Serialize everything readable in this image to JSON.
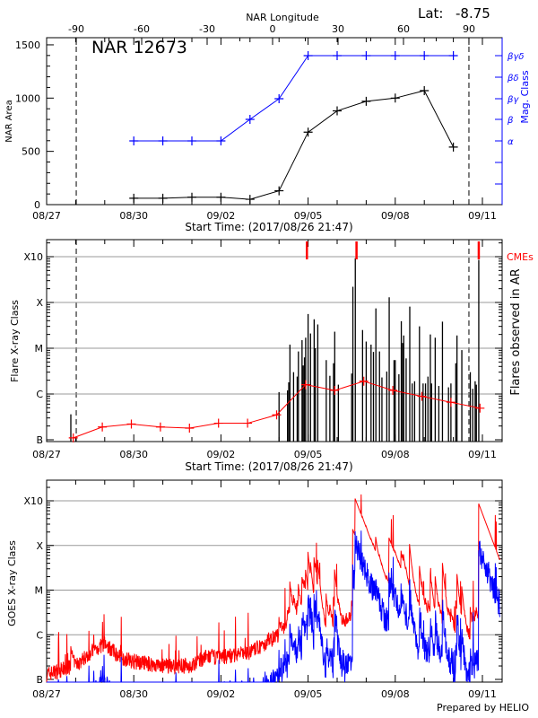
{
  "chart_data": [
    {
      "type": "line",
      "title": "NAR 12673",
      "lat_label": "Lat:",
      "lat_value": "-8.75",
      "top_axis_label": "NAR Longitude",
      "top_ticks": [
        "-90",
        "-60",
        "-30",
        "0",
        "30",
        "60",
        "90"
      ],
      "top_tick_values": [
        -90,
        -60,
        -30,
        0,
        30,
        60,
        90
      ],
      "xlabel": "Start Time: (2017/08/26 21:47)",
      "x_ticks": [
        "08/27",
        "08/30",
        "09/02",
        "09/05",
        "09/08",
        "09/11"
      ],
      "ylabel": "NAR Area",
      "y_ticks": [
        "0",
        "500",
        "1000",
        "1500"
      ],
      "y_tick_values": [
        0,
        500,
        1000,
        1500
      ],
      "ylim": [
        0,
        1567
      ],
      "y2label": "Mag. Class",
      "y2_ticks": [
        "α",
        "β",
        "βγ",
        "βδ",
        "βγδ"
      ],
      "limb_longitudes": [
        -90,
        90
      ],
      "series": [
        {
          "color": "#000000",
          "x": [
            "08/30 00:00",
            "08/31 00:00",
            "09/01 00:00",
            "09/02 00:00",
            "09/03 00:00",
            "09/04 00:00",
            "09/05 00:00",
            "09/06 00:00",
            "09/07 00:00",
            "09/08 00:00",
            "09/09 00:00",
            "09/10 00:00"
          ],
          "values": [
            60,
            60,
            70,
            70,
            50,
            130,
            680,
            880,
            970,
            1000,
            1070,
            540
          ]
        },
        {
          "color": "#0000ff",
          "axis": "right",
          "x": [
            "08/30 00:00",
            "08/31 00:00",
            "09/01 00:00",
            "09/02 00:00",
            "09/03 00:00",
            "09/04 00:00",
            "09/05 00:00",
            "09/06 00:00",
            "09/07 00:00",
            "09/08 00:00",
            "09/09 00:00",
            "09/10 00:00"
          ],
          "values": [
            "α",
            "α",
            "α",
            "α",
            "β",
            "βγ",
            "βγδ",
            "βγδ",
            "βγδ",
            "βγδ",
            "βγδ",
            "βγδ"
          ]
        }
      ]
    },
    {
      "type": "bar",
      "xlabel": "Start Time: (2017/08/26 21:47)",
      "x_ticks": [
        "08/27",
        "08/30",
        "09/02",
        "09/05",
        "09/08",
        "09/11"
      ],
      "ylabel": "Flare X-ray Class",
      "y_ticks": [
        "B",
        "C",
        "M",
        "X",
        "X10"
      ],
      "y2label": "Flares observed in AR",
      "cme_label": "CMEs",
      "colors": {
        "flares": "#000000",
        "average": "#ff0000",
        "cme": "#ff0000"
      },
      "cmes": [
        "09/04 23:00",
        "09/06 16:00",
        "09/10 21:00"
      ],
      "flares": [
        [
          "08/27 20:00",
          "B3.6"
        ],
        [
          "09/04 00:00",
          "C1.1"
        ],
        [
          "09/04 07:00",
          "C1.2"
        ],
        [
          "09/04 08:00",
          "C1.8"
        ],
        [
          "09/04 09:00",
          "M1.2"
        ],
        [
          "09/04 12:00",
          "C3.0"
        ],
        [
          "09/04 15:00",
          "C2.4"
        ],
        [
          "09/04 16:00",
          "C8.5"
        ],
        [
          "09/04 19:00",
          "M1.5"
        ],
        [
          "09/04 20:00",
          "C4.2"
        ],
        [
          "09/04 21:00",
          "C6.3"
        ],
        [
          "09/04 22:00",
          "M1.7"
        ],
        [
          "09/05 00:00",
          "M5.6"
        ],
        [
          "09/05 02:00",
          "M2.1"
        ],
        [
          "09/05 05:00",
          "M4.3"
        ],
        [
          "09/05 06:00",
          "M1.0"
        ],
        [
          "09/05 08:00",
          "M3.3"
        ],
        [
          "09/05 15:00",
          "C5.5"
        ],
        [
          "09/05 18:00",
          "C2.5"
        ],
        [
          "09/05 21:00",
          "C4.7"
        ],
        [
          "09/05 22:00",
          "M2.3"
        ],
        [
          "09/06 01:00",
          "C1.6"
        ],
        [
          "09/06 12:00",
          "C2.8"
        ],
        [
          "09/06 13:00",
          "X2.2"
        ],
        [
          "09/06 15:00",
          "X9.3"
        ],
        [
          "09/06 21:00",
          "M2.5"
        ],
        [
          "09/07 00:00",
          "M1.4"
        ],
        [
          "09/07 04:00",
          "M1.2"
        ],
        [
          "09/07 06:00",
          "C8.3"
        ],
        [
          "09/07 08:00",
          "M7.4"
        ],
        [
          "09/07 11:00",
          "C8.5"
        ],
        [
          "09/07 13:00",
          "C2.3"
        ],
        [
          "09/07 17:00",
          "C3.1"
        ],
        [
          "09/07 19:00",
          "X1.3"
        ],
        [
          "09/07 23:00",
          "C5.5"
        ],
        [
          "09/08 00:00",
          "C5.5"
        ],
        [
          "09/08 03:00",
          "C2.7"
        ],
        [
          "09/08 05:00",
          "M3.9"
        ],
        [
          "09/08 06:00",
          "M1.3"
        ],
        [
          "09/08 07:00",
          "M1.9"
        ],
        [
          "09/08 09:00",
          "C6.0"
        ],
        [
          "09/08 12:00",
          "M8.1"
        ],
        [
          "09/08 14:00",
          "C1.7"
        ],
        [
          "09/08 16:00",
          "C1.9"
        ],
        [
          "09/08 20:00",
          "M3.0"
        ],
        [
          "09/08 23:00",
          "C1.7"
        ],
        [
          "09/09 01:00",
          "C1.7"
        ],
        [
          "09/09 03:00",
          "C2.4"
        ],
        [
          "09/09 05:00",
          "M2.0"
        ],
        [
          "09/09 06:00",
          "C1.7"
        ],
        [
          "09/09 09:00",
          "M1.7"
        ],
        [
          "09/09 12:00",
          "C1.5"
        ],
        [
          "09/09 15:00",
          "M3.8"
        ],
        [
          "09/09 20:00",
          "C1.4"
        ],
        [
          "09/09 22:00",
          "C1.7"
        ],
        [
          "09/10 02:00",
          "C4.7"
        ],
        [
          "09/10 03:00",
          "M1.9"
        ],
        [
          "09/10 07:00",
          "C9.1"
        ],
        [
          "09/10 14:00",
          "C3.0"
        ],
        [
          "09/10 16:00",
          "C1.3"
        ],
        [
          "09/10 18:00",
          "C1.9"
        ],
        [
          "09/10 19:00",
          "C1.6"
        ],
        [
          "09/10 21:00",
          "X8.5"
        ]
      ],
      "average": {
        "x": [
          "08/27 22:00",
          "08/28 22:00",
          "08/29 22:00",
          "08/30 22:00",
          "08/31 22:00",
          "09/01 22:00",
          "09/02 22:00",
          "09/03 22:00",
          "09/04 22:00",
          "09/05 22:00",
          "09/06 22:00",
          "09/07 22:00",
          "09/08 22:00",
          "09/09 22:00",
          "09/10 22:00"
        ],
        "values": [
          "B1.1",
          "B1.9",
          "B2.2",
          "B1.9",
          "B1.8",
          "B2.3",
          "B2.3",
          "B3.5",
          "C1.6",
          "C1.2",
          "C1.9",
          "C1.2",
          "B8.9",
          "B6.6",
          "B4.9"
        ]
      }
    },
    {
      "type": "line",
      "x_ticks": [
        "08/27",
        "08/30",
        "09/02",
        "09/05",
        "09/08",
        "09/11"
      ],
      "ylabel": "GOES X-ray Class",
      "y_ticks": [
        "B",
        "C",
        "M",
        "X",
        "X10"
      ],
      "series_colors": {
        "long": "#ff0000",
        "short": "#0000ff"
      },
      "long_baseline": {
        "x": [
          "08/27 00:00",
          "08/28 00:00",
          "08/28 12:00",
          "08/29 00:00",
          "08/29 12:00",
          "08/30 00:00",
          "08/31 00:00",
          "09/01 00:00",
          "09/01 12:00",
          "09/02 00:00",
          "09/03 00:00",
          "09/03 12:00",
          "09/04 00:00",
          "09/04 12:00",
          "09/05 00:00",
          "09/05 12:00",
          "09/06 00:00",
          "09/06 14:00",
          "09/07 00:00",
          "09/07 12:00",
          "09/08 00:00",
          "09/08 12:00",
          "09/09 00:00",
          "09/09 12:00",
          "09/10 00:00",
          "09/10 12:00",
          "09/10 21:00",
          "09/11 06:00"
        ],
        "values": [
          "B1.3",
          "B2.0",
          "B4.0",
          "B6.3",
          "B3.2",
          "B2.5",
          "B2.0",
          "B2.0",
          "B3.2",
          "B3.2",
          "B4.0",
          "B6.3",
          "C1.0",
          "C2.5",
          "C4.0",
          "C1.6",
          "C1.3",
          "C3.2",
          "C4.0",
          "C2.5",
          "C2.0",
          "C1.6",
          "C2.0",
          "C1.6",
          "C1.3",
          "B8.0",
          "C1.3",
          "B4.0"
        ]
      },
      "footer": "Prepared by HELIO"
    }
  ]
}
